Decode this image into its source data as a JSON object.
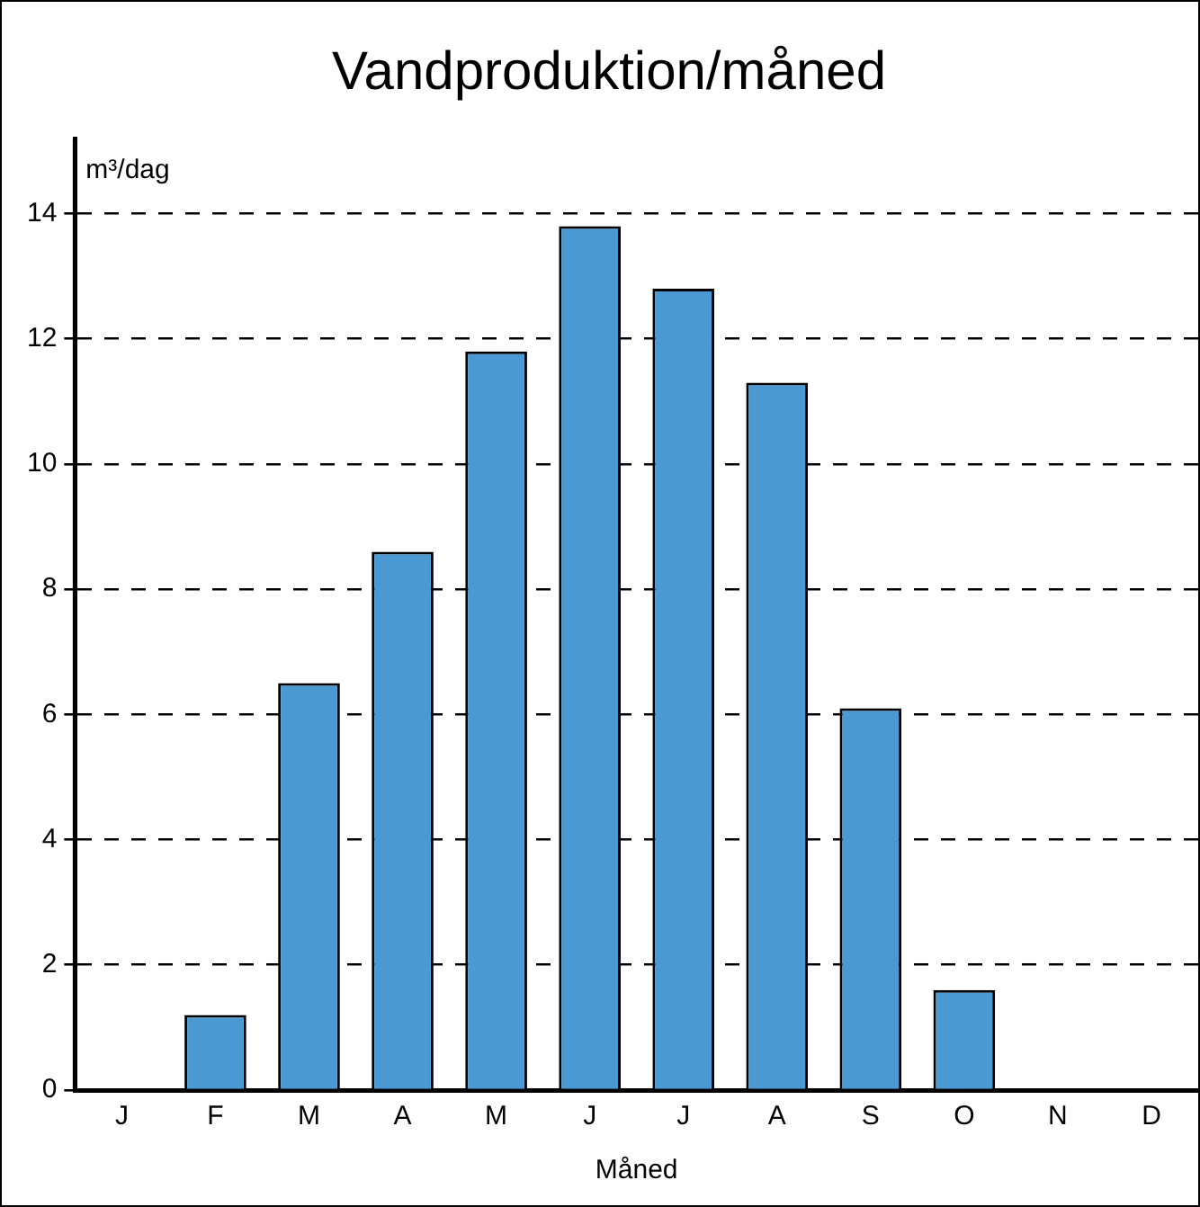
{
  "chart_data": {
    "type": "bar",
    "title": "Vandproduktion/måned",
    "ylabel": "m³/dag",
    "xlabel": "Måned",
    "categories": [
      "J",
      "F",
      "M",
      "A",
      "M",
      "J",
      "J",
      "A",
      "S",
      "O",
      "N",
      "D"
    ],
    "values": [
      0,
      1.2,
      6.5,
      8.6,
      11.8,
      13.8,
      12.8,
      11.3,
      6.1,
      1.6,
      0,
      0
    ],
    "color": "#4a99d3",
    "ylim": [
      0,
      15.2
    ],
    "yticks": [
      0,
      2,
      4,
      6,
      8,
      10,
      12,
      14
    ],
    "grid": "y",
    "legend": false
  }
}
